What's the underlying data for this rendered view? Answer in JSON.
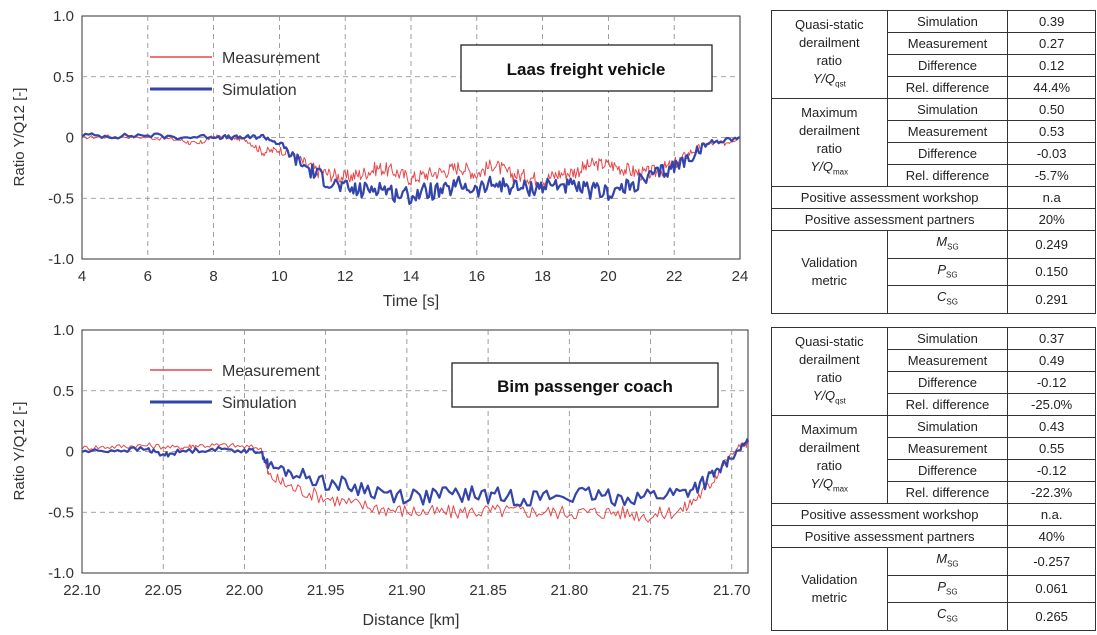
{
  "chart_data": [
    {
      "type": "line",
      "title": "Laas freight vehicle",
      "xlabel": "Time [s]",
      "ylabel": "Ratio Y/Q12  [-]",
      "xlim": [
        4,
        24
      ],
      "ylim": [
        -1.0,
        1.0
      ],
      "x_ticks": [
        4,
        6,
        8,
        10,
        12,
        14,
        16,
        18,
        20,
        22,
        24
      ],
      "x_tick_labels": [
        "4",
        "6",
        "8",
        "10",
        "12",
        "14",
        "16",
        "18",
        "20",
        "22",
        "24"
      ],
      "y_ticks": [
        1.0,
        0.5,
        0,
        -0.5,
        -1.0
      ],
      "y_tick_labels": [
        "1.0",
        "0.5",
        "0",
        "-0.5",
        "-1.0"
      ],
      "grid": true,
      "legend_position": "top-left",
      "series": [
        {
          "name": "Measurement",
          "color": "#e8474a",
          "x": [
            4,
            5,
            6,
            7,
            7.5,
            8,
            8.5,
            9,
            9.5,
            10,
            10.5,
            11,
            11.5,
            12,
            12.5,
            13,
            13.5,
            14,
            14.5,
            15,
            15.5,
            16,
            16.5,
            17,
            17.5,
            18,
            18.5,
            19,
            19.5,
            20,
            20.5,
            21,
            21.5,
            22,
            22.5,
            23,
            23.5,
            24
          ],
          "y": [
            0.0,
            0.01,
            0.0,
            -0.02,
            -0.06,
            0.01,
            0.0,
            -0.02,
            -0.12,
            -0.1,
            -0.16,
            -0.26,
            -0.3,
            -0.33,
            -0.3,
            -0.25,
            -0.28,
            -0.34,
            -0.3,
            -0.28,
            -0.24,
            -0.3,
            -0.22,
            -0.3,
            -0.32,
            -0.35,
            -0.3,
            -0.28,
            -0.22,
            -0.22,
            -0.26,
            -0.3,
            -0.28,
            -0.22,
            -0.12,
            -0.05,
            -0.05,
            0.0
          ]
        },
        {
          "name": "Simulation",
          "color": "#3344aa",
          "x": [
            4,
            5,
            6,
            7,
            8,
            8.5,
            9,
            9.5,
            10,
            10.5,
            11,
            11.5,
            12,
            12.5,
            13,
            13.5,
            14,
            14.5,
            15,
            15.5,
            16,
            16.5,
            17,
            17.5,
            18,
            18.5,
            19,
            19.5,
            20,
            20.5,
            21,
            21.5,
            22,
            22.5,
            23,
            23.5,
            24
          ],
          "y": [
            0.02,
            0.01,
            0.02,
            0.0,
            0.01,
            0.0,
            0.0,
            0.01,
            -0.05,
            -0.18,
            -0.28,
            -0.36,
            -0.42,
            -0.44,
            -0.4,
            -0.46,
            -0.48,
            -0.44,
            -0.45,
            -0.38,
            -0.44,
            -0.38,
            -0.4,
            -0.42,
            -0.4,
            -0.38,
            -0.42,
            -0.44,
            -0.45,
            -0.42,
            -0.36,
            -0.3,
            -0.24,
            -0.16,
            -0.05,
            -0.02,
            0.0
          ]
        }
      ]
    },
    {
      "type": "line",
      "title": "Bim passenger coach",
      "xlabel": "Distance [km]",
      "ylabel": "Ratio Y/Q12  [-]",
      "xlim": [
        22.1,
        21.69
      ],
      "ylim": [
        -1.0,
        1.0
      ],
      "x_ticks": [
        22.1,
        22.05,
        22.0,
        21.95,
        21.9,
        21.85,
        21.8,
        21.75,
        21.7
      ],
      "x_tick_labels": [
        "22.10",
        "22.05",
        "22.00",
        "21.95",
        "21.90",
        "21.85",
        "21.80",
        "21.75",
        "21.70"
      ],
      "y_ticks": [
        1.0,
        0.5,
        0,
        -0.5,
        -1.0
      ],
      "y_tick_labels": [
        "1.0",
        "0.5",
        "0",
        "-0.5",
        "-1.0"
      ],
      "grid": true,
      "legend_position": "top-left",
      "series": [
        {
          "name": "Measurement",
          "color": "#e8474a",
          "x": [
            22.1,
            22.08,
            22.06,
            22.04,
            22.03,
            22.01,
            21.99,
            21.985,
            21.97,
            21.95,
            21.93,
            21.91,
            21.89,
            21.87,
            21.85,
            21.83,
            21.81,
            21.79,
            21.77,
            21.75,
            21.73,
            21.715,
            21.705,
            21.695,
            21.69
          ],
          "y": [
            0.03,
            0.04,
            0.05,
            0.03,
            0.05,
            0.05,
            0.03,
            -0.2,
            -0.3,
            -0.38,
            -0.44,
            -0.48,
            -0.5,
            -0.5,
            -0.49,
            -0.49,
            -0.5,
            -0.5,
            -0.5,
            -0.53,
            -0.48,
            -0.3,
            -0.1,
            0.05,
            0.06
          ]
        },
        {
          "name": "Simulation",
          "color": "#3344aa",
          "x": [
            22.1,
            22.08,
            22.06,
            22.05,
            22.04,
            22.02,
            22.0,
            21.99,
            21.985,
            21.97,
            21.95,
            21.93,
            21.91,
            21.89,
            21.87,
            21.85,
            21.83,
            21.81,
            21.79,
            21.77,
            21.75,
            21.73,
            21.715,
            21.705,
            21.695,
            21.69
          ],
          "y": [
            0.0,
            0.01,
            0.02,
            -0.03,
            0.0,
            0.02,
            0.01,
            0.0,
            -0.12,
            -0.18,
            -0.25,
            -0.3,
            -0.35,
            -0.37,
            -0.35,
            -0.36,
            -0.38,
            -0.37,
            -0.36,
            -0.38,
            -0.36,
            -0.34,
            -0.24,
            -0.12,
            0.02,
            0.08
          ]
        }
      ]
    }
  ],
  "tables": [
    {
      "quasi_static": {
        "label": [
          "Quasi-static",
          "derailment",
          "ratio"
        ],
        "symbol": "Y/Q",
        "subscript": "qst",
        "rows": [
          {
            "label": "Simulation",
            "value": "0.39"
          },
          {
            "label": "Measurement",
            "value": "0.27"
          },
          {
            "label": "Difference",
            "value": "0.12"
          },
          {
            "label": "Rel. difference",
            "value": "44.4%"
          }
        ]
      },
      "maximum": {
        "label": [
          "Maximum",
          "derailment",
          "ratio"
        ],
        "symbol": "Y/Q",
        "subscript": "max",
        "rows": [
          {
            "label": "Simulation",
            "value": "0.50"
          },
          {
            "label": "Measurement",
            "value": "0.53"
          },
          {
            "label": "Difference",
            "value": "-0.03"
          },
          {
            "label": "Rel. difference",
            "value": "-5.7%"
          }
        ]
      },
      "workshop": {
        "label": "Positive assessment workshop",
        "value": "n.a"
      },
      "partners": {
        "label": "Positive assessment partners",
        "value": "20%"
      },
      "validation": {
        "label": [
          "Validation",
          "metric"
        ],
        "rows": [
          {
            "symbol": "M",
            "subscript": "SG",
            "value": "0.249"
          },
          {
            "symbol": "P",
            "subscript": "SG",
            "value": "0.150"
          },
          {
            "symbol": "C",
            "subscript": "SG",
            "value": "0.291"
          }
        ]
      }
    },
    {
      "quasi_static": {
        "label": [
          "Quasi-static",
          "derailment",
          "ratio"
        ],
        "symbol": "Y/Q",
        "subscript": "qst",
        "rows": [
          {
            "label": "Simulation",
            "value": "0.37"
          },
          {
            "label": "Measurement",
            "value": "0.49"
          },
          {
            "label": "Difference",
            "value": "-0.12"
          },
          {
            "label": "Rel. difference",
            "value": "-25.0%"
          }
        ]
      },
      "maximum": {
        "label": [
          "Maximum",
          "derailment",
          "ratio"
        ],
        "symbol": "Y/Q",
        "subscript": "max",
        "rows": [
          {
            "label": "Simulation",
            "value": "0.43"
          },
          {
            "label": "Measurement",
            "value": "0.55"
          },
          {
            "label": "Difference",
            "value": "-0.12"
          },
          {
            "label": "Rel. difference",
            "value": "-22.3%"
          }
        ]
      },
      "workshop": {
        "label": "Positive assessment workshop",
        "value": "n.a."
      },
      "partners": {
        "label": "Positive assessment partners",
        "value": "40%"
      },
      "validation": {
        "label": [
          "Validation",
          "metric"
        ],
        "rows": [
          {
            "symbol": "M",
            "subscript": "SG",
            "value": "-0.257"
          },
          {
            "symbol": "P",
            "subscript": "SG",
            "value": "0.061"
          },
          {
            "symbol": "C",
            "subscript": "SG",
            "value": "0.265"
          }
        ]
      }
    }
  ]
}
